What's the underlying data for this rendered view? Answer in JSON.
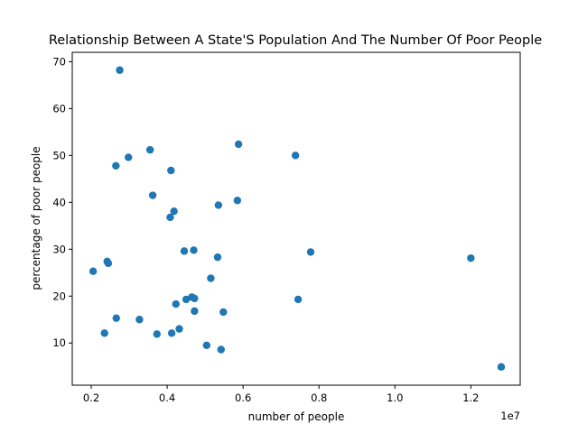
{
  "chart_data": {
    "type": "scatter",
    "title": "Relationship Between A State'S Population And The Number Of Poor People",
    "xlabel": "number of people",
    "ylabel": "percentage of poor people",
    "x_offset_label": "1e7",
    "xlim": [
      1500000,
      13300000
    ],
    "ylim": [
      1.0,
      72.0
    ],
    "xticks": [
      2000000,
      4000000,
      6000000,
      8000000,
      10000000,
      12000000
    ],
    "xtick_labels": [
      "0.2",
      "0.4",
      "0.6",
      "0.8",
      "1.0",
      "1.2"
    ],
    "yticks": [
      10,
      20,
      30,
      40,
      50,
      60,
      70
    ],
    "ytick_labels": [
      "10",
      "20",
      "30",
      "40",
      "50",
      "60",
      "70"
    ],
    "grid": false,
    "marker_color": "#1f77b4",
    "points": [
      {
        "x": 2750000,
        "y": 68.2
      },
      {
        "x": 5880000,
        "y": 52.4
      },
      {
        "x": 3550000,
        "y": 51.2
      },
      {
        "x": 7380000,
        "y": 50.0
      },
      {
        "x": 2980000,
        "y": 49.6
      },
      {
        "x": 2650000,
        "y": 47.8
      },
      {
        "x": 4100000,
        "y": 46.8
      },
      {
        "x": 3620000,
        "y": 41.5
      },
      {
        "x": 5850000,
        "y": 40.4
      },
      {
        "x": 5350000,
        "y": 39.4
      },
      {
        "x": 4180000,
        "y": 38.1
      },
      {
        "x": 4080000,
        "y": 36.8
      },
      {
        "x": 4700000,
        "y": 29.8
      },
      {
        "x": 4450000,
        "y": 29.6
      },
      {
        "x": 7780000,
        "y": 29.4
      },
      {
        "x": 5330000,
        "y": 28.3
      },
      {
        "x": 12000000,
        "y": 28.1
      },
      {
        "x": 2420000,
        "y": 27.4
      },
      {
        "x": 2450000,
        "y": 27.0
      },
      {
        "x": 2050000,
        "y": 25.3
      },
      {
        "x": 5150000,
        "y": 23.8
      },
      {
        "x": 4650000,
        "y": 19.8
      },
      {
        "x": 4720000,
        "y": 19.5
      },
      {
        "x": 4500000,
        "y": 19.3
      },
      {
        "x": 7450000,
        "y": 19.3
      },
      {
        "x": 4230000,
        "y": 18.3
      },
      {
        "x": 4720000,
        "y": 16.8
      },
      {
        "x": 5480000,
        "y": 16.6
      },
      {
        "x": 2660000,
        "y": 15.3
      },
      {
        "x": 3270000,
        "y": 15.0
      },
      {
        "x": 4320000,
        "y": 13.0
      },
      {
        "x": 2350000,
        "y": 12.1
      },
      {
        "x": 3730000,
        "y": 11.9
      },
      {
        "x": 4120000,
        "y": 12.1
      },
      {
        "x": 5040000,
        "y": 9.5
      },
      {
        "x": 5420000,
        "y": 8.6
      },
      {
        "x": 12800000,
        "y": 4.9
      }
    ]
  }
}
